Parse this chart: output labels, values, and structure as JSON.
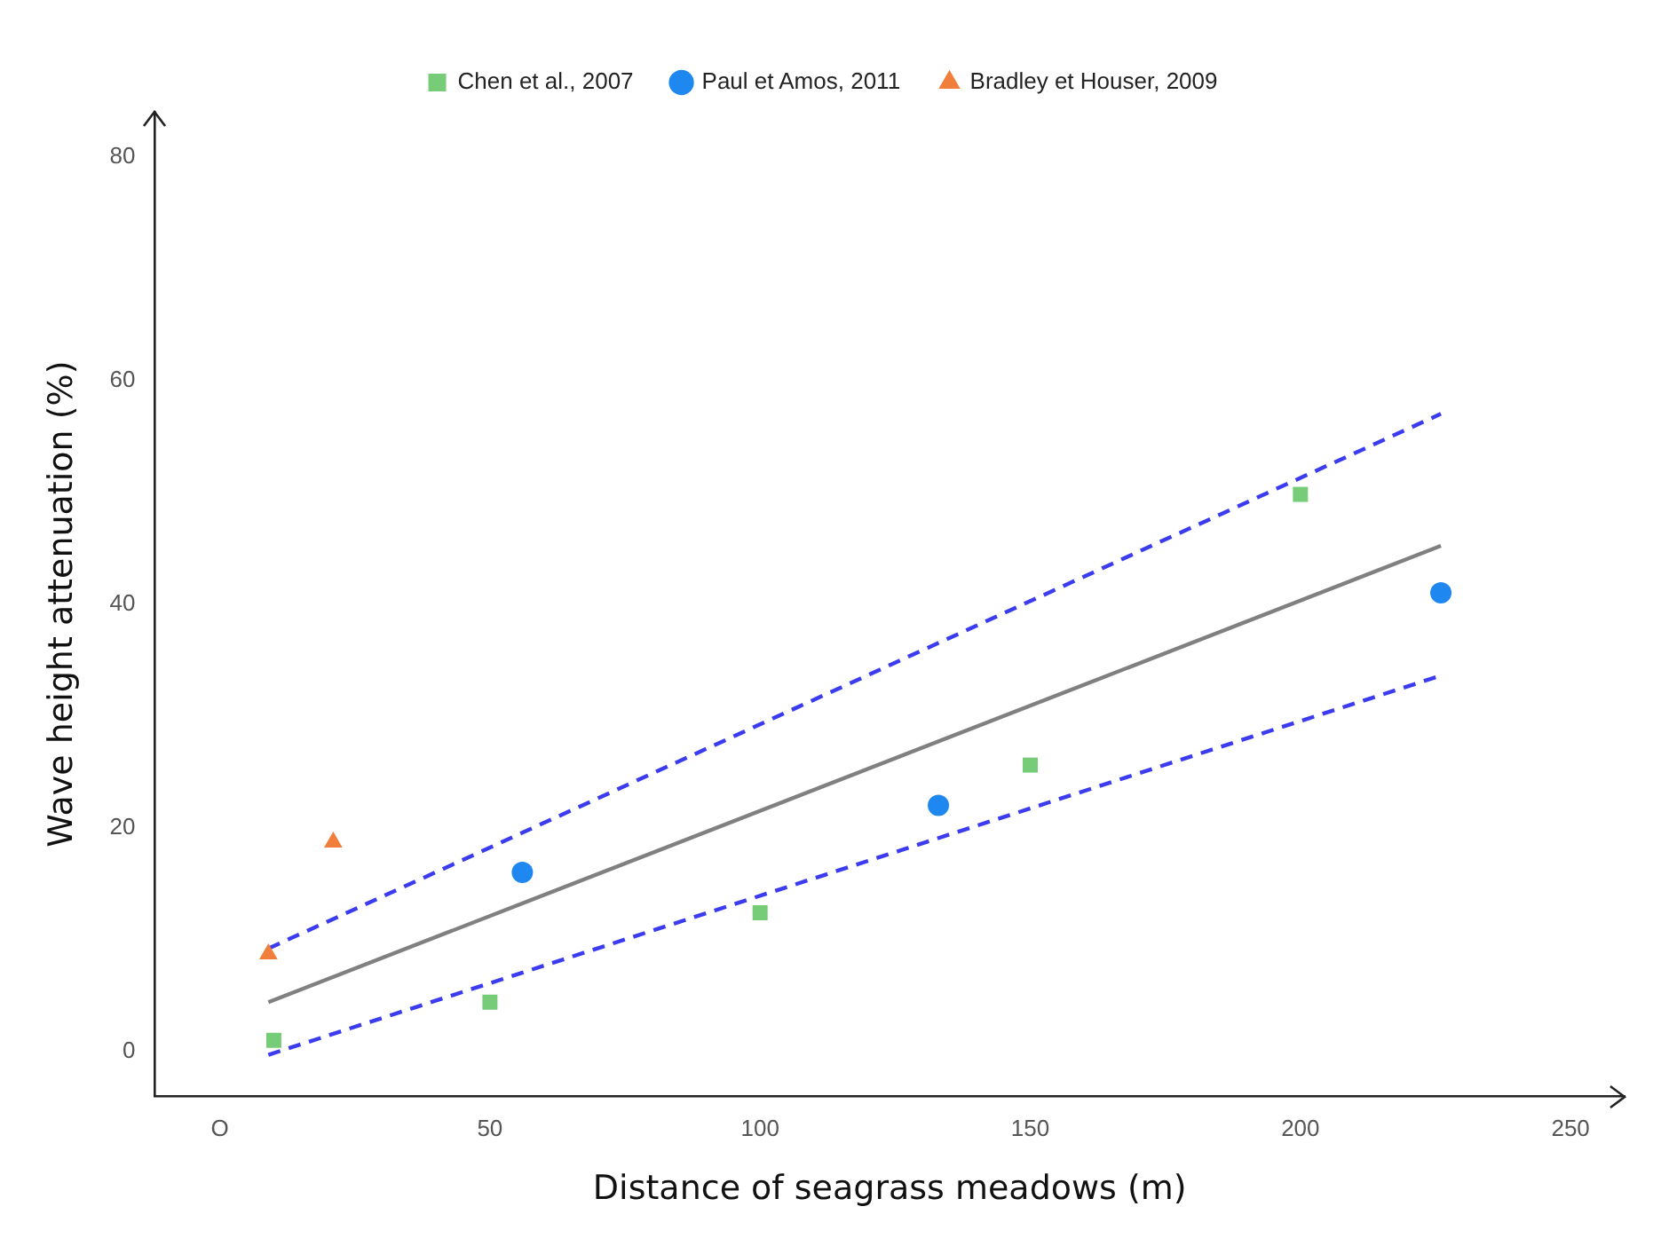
{
  "chart_data": {
    "type": "scatter",
    "xlabel": "Distance of seagrass meadows (m)",
    "ylabel": "Wave height attenuation (%)",
    "xlim": [
      -12,
      260
    ],
    "ylim": [
      -4,
      84
    ],
    "xticks": [
      {
        "value": 0,
        "label": "O"
      },
      50,
      100,
      150,
      200,
      250
    ],
    "yticks": [
      0,
      20,
      40,
      60,
      80
    ],
    "grid": false,
    "legend": "top",
    "series": [
      {
        "name": "Chen et al., 2007",
        "type": "scatter",
        "marker": "square",
        "color": "#77cc77",
        "x": [
          10,
          50,
          100,
          150,
          200
        ],
        "values": [
          1,
          4.4,
          12.4,
          25.6,
          49.8
        ]
      },
      {
        "name": "Paul et Amos, 2011",
        "type": "scatter",
        "marker": "circle",
        "color": "#1e88f0",
        "x": [
          56,
          133,
          226
        ],
        "values": [
          16,
          22,
          41
        ]
      },
      {
        "name": "Bradley et Houser, 2009",
        "type": "scatter",
        "marker": "triangle",
        "color": "#f07f3c",
        "x": [
          9,
          21
        ],
        "values": [
          8.7,
          18.7
        ]
      },
      {
        "type": "line",
        "marker": "none",
        "line_style": "solid",
        "color": "#808080",
        "x": [
          9,
          226
        ],
        "values": [
          4.4,
          45.2
        ]
      },
      {
        "type": "line",
        "marker": "none",
        "line_style": "dashed",
        "color": "#3b3bf0",
        "x": [
          9,
          226
        ],
        "values": [
          9.2,
          57
        ]
      },
      {
        "type": "line",
        "marker": "none",
        "line_style": "dashed",
        "color": "#3b3bf0",
        "x": [
          9,
          226
        ],
        "values": [
          -0.3,
          33.6
        ]
      }
    ]
  }
}
